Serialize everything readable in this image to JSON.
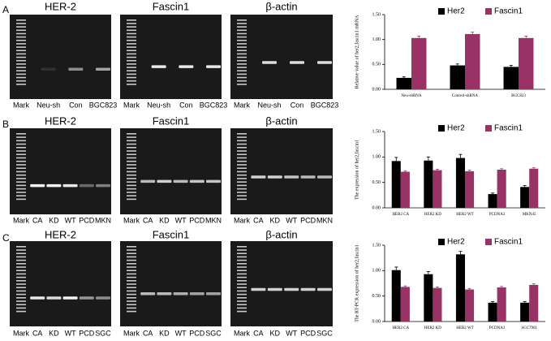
{
  "chart_data": [
    {
      "type": "bar",
      "y_label": "Relative value of her2,fascin1 mRNA",
      "categories": [
        "Neu-shRNA",
        "Control-shRNA",
        "BGC823"
      ],
      "series": [
        {
          "name": "Her2",
          "color": "#000000",
          "values": [
            0.23,
            0.48,
            0.45
          ],
          "errors": [
            0.02,
            0.03,
            0.03
          ]
        },
        {
          "name": "Fascin1",
          "color": "#993366",
          "values": [
            1.03,
            1.11,
            1.03
          ],
          "errors": [
            0.04,
            0.04,
            0.04
          ]
        }
      ],
      "ylim": [
        0,
        1.5
      ],
      "yticks": [
        {
          "value": 0,
          "label": "0.00"
        },
        {
          "value": 0.5,
          "label": "0.50"
        },
        {
          "value": 1,
          "label": "1.00"
        },
        {
          "value": 1.5,
          "label": "1.50"
        }
      ]
    },
    {
      "type": "bar",
      "y_label": "The expression of her2,fascin1",
      "categories": [
        "HER2 CA",
        "HER2 KD",
        "HER2 WT",
        "PCDNA3",
        "MKN45"
      ],
      "series": [
        {
          "name": "Her2",
          "color": "#000000",
          "values": [
            0.92,
            0.93,
            0.98,
            0.27,
            0.41
          ],
          "errors": [
            0.07,
            0.07,
            0.07,
            0.02,
            0.03
          ]
        },
        {
          "name": "Fascin1",
          "color": "#993366",
          "values": [
            0.71,
            0.74,
            0.72,
            0.75,
            0.77
          ],
          "errors": [
            0.02,
            0.02,
            0.02,
            0.02,
            0.02
          ]
        }
      ],
      "ylim": [
        0,
        1.5
      ],
      "yticks": [
        {
          "value": 0,
          "label": "0.00"
        },
        {
          "value": 0.5,
          "label": "0.50"
        },
        {
          "value": 1,
          "label": "1.00"
        },
        {
          "value": 1.5,
          "label": "1.50"
        }
      ]
    },
    {
      "type": "bar",
      "y_label": "The RT-PCR expression of her2,fascin1",
      "categories": [
        "HER2 CA",
        "HER2 KD",
        "HER2 WT",
        "PCDNA3",
        "SGC7901"
      ],
      "series": [
        {
          "name": "Her2",
          "color": "#000000",
          "values": [
            1.01,
            0.93,
            1.32,
            0.37,
            0.37
          ],
          "errors": [
            0.06,
            0.05,
            0.06,
            0.02,
            0.02
          ]
        },
        {
          "name": "Fascin1",
          "color": "#993366",
          "values": [
            0.68,
            0.66,
            0.63,
            0.67,
            0.72
          ],
          "errors": [
            0.02,
            0.02,
            0.02,
            0.02,
            0.02
          ]
        }
      ],
      "ylim": [
        0,
        1.5
      ],
      "yticks": [
        {
          "value": 0,
          "label": "0.00"
        },
        {
          "value": 0.5,
          "label": "0.50"
        },
        {
          "value": 1,
          "label": "1.00"
        },
        {
          "value": 1.5,
          "label": "1.50"
        }
      ]
    }
  ],
  "panels": [
    {
      "letter": "A",
      "gels": [
        {
          "title": "HER-2",
          "lanes": [
            "Mark",
            "Neu-sh",
            "Con",
            "BGC823"
          ]
        },
        {
          "title": "Fascin1",
          "lanes": [
            "Mark",
            "Neu-sh",
            "Con",
            "BGC823"
          ]
        },
        {
          "title": "β-actin",
          "lanes": [
            "Mark",
            "Neu-sh",
            "Con",
            "BGC823"
          ]
        }
      ]
    },
    {
      "letter": "B",
      "gels": [
        {
          "title": "HER-2",
          "lanes": [
            "Mark",
            "CA",
            "KD",
            "WT",
            "PCD",
            "MKN"
          ]
        },
        {
          "title": "Fascin1",
          "lanes": [
            "Mark",
            "CA",
            "KD",
            "WT",
            "PCD",
            "MKN"
          ]
        },
        {
          "title": "β-actin",
          "lanes": [
            "Mark",
            "CA",
            "KD",
            "WT",
            "PCD",
            "MKN"
          ]
        }
      ]
    },
    {
      "letter": "C",
      "gels": [
        {
          "title": "HER-2",
          "lanes": [
            "Mark",
            "CA",
            "KD",
            "WT",
            "PCD",
            "SGC"
          ]
        },
        {
          "title": "Fascin1",
          "lanes": [
            "Mark",
            "CA",
            "KD",
            "WT",
            "PCD",
            "SGC"
          ]
        },
        {
          "title": "β-actin",
          "lanes": [
            "Mark",
            "CA",
            "KD",
            "WT",
            "PCD",
            "SGC"
          ]
        }
      ]
    }
  ]
}
